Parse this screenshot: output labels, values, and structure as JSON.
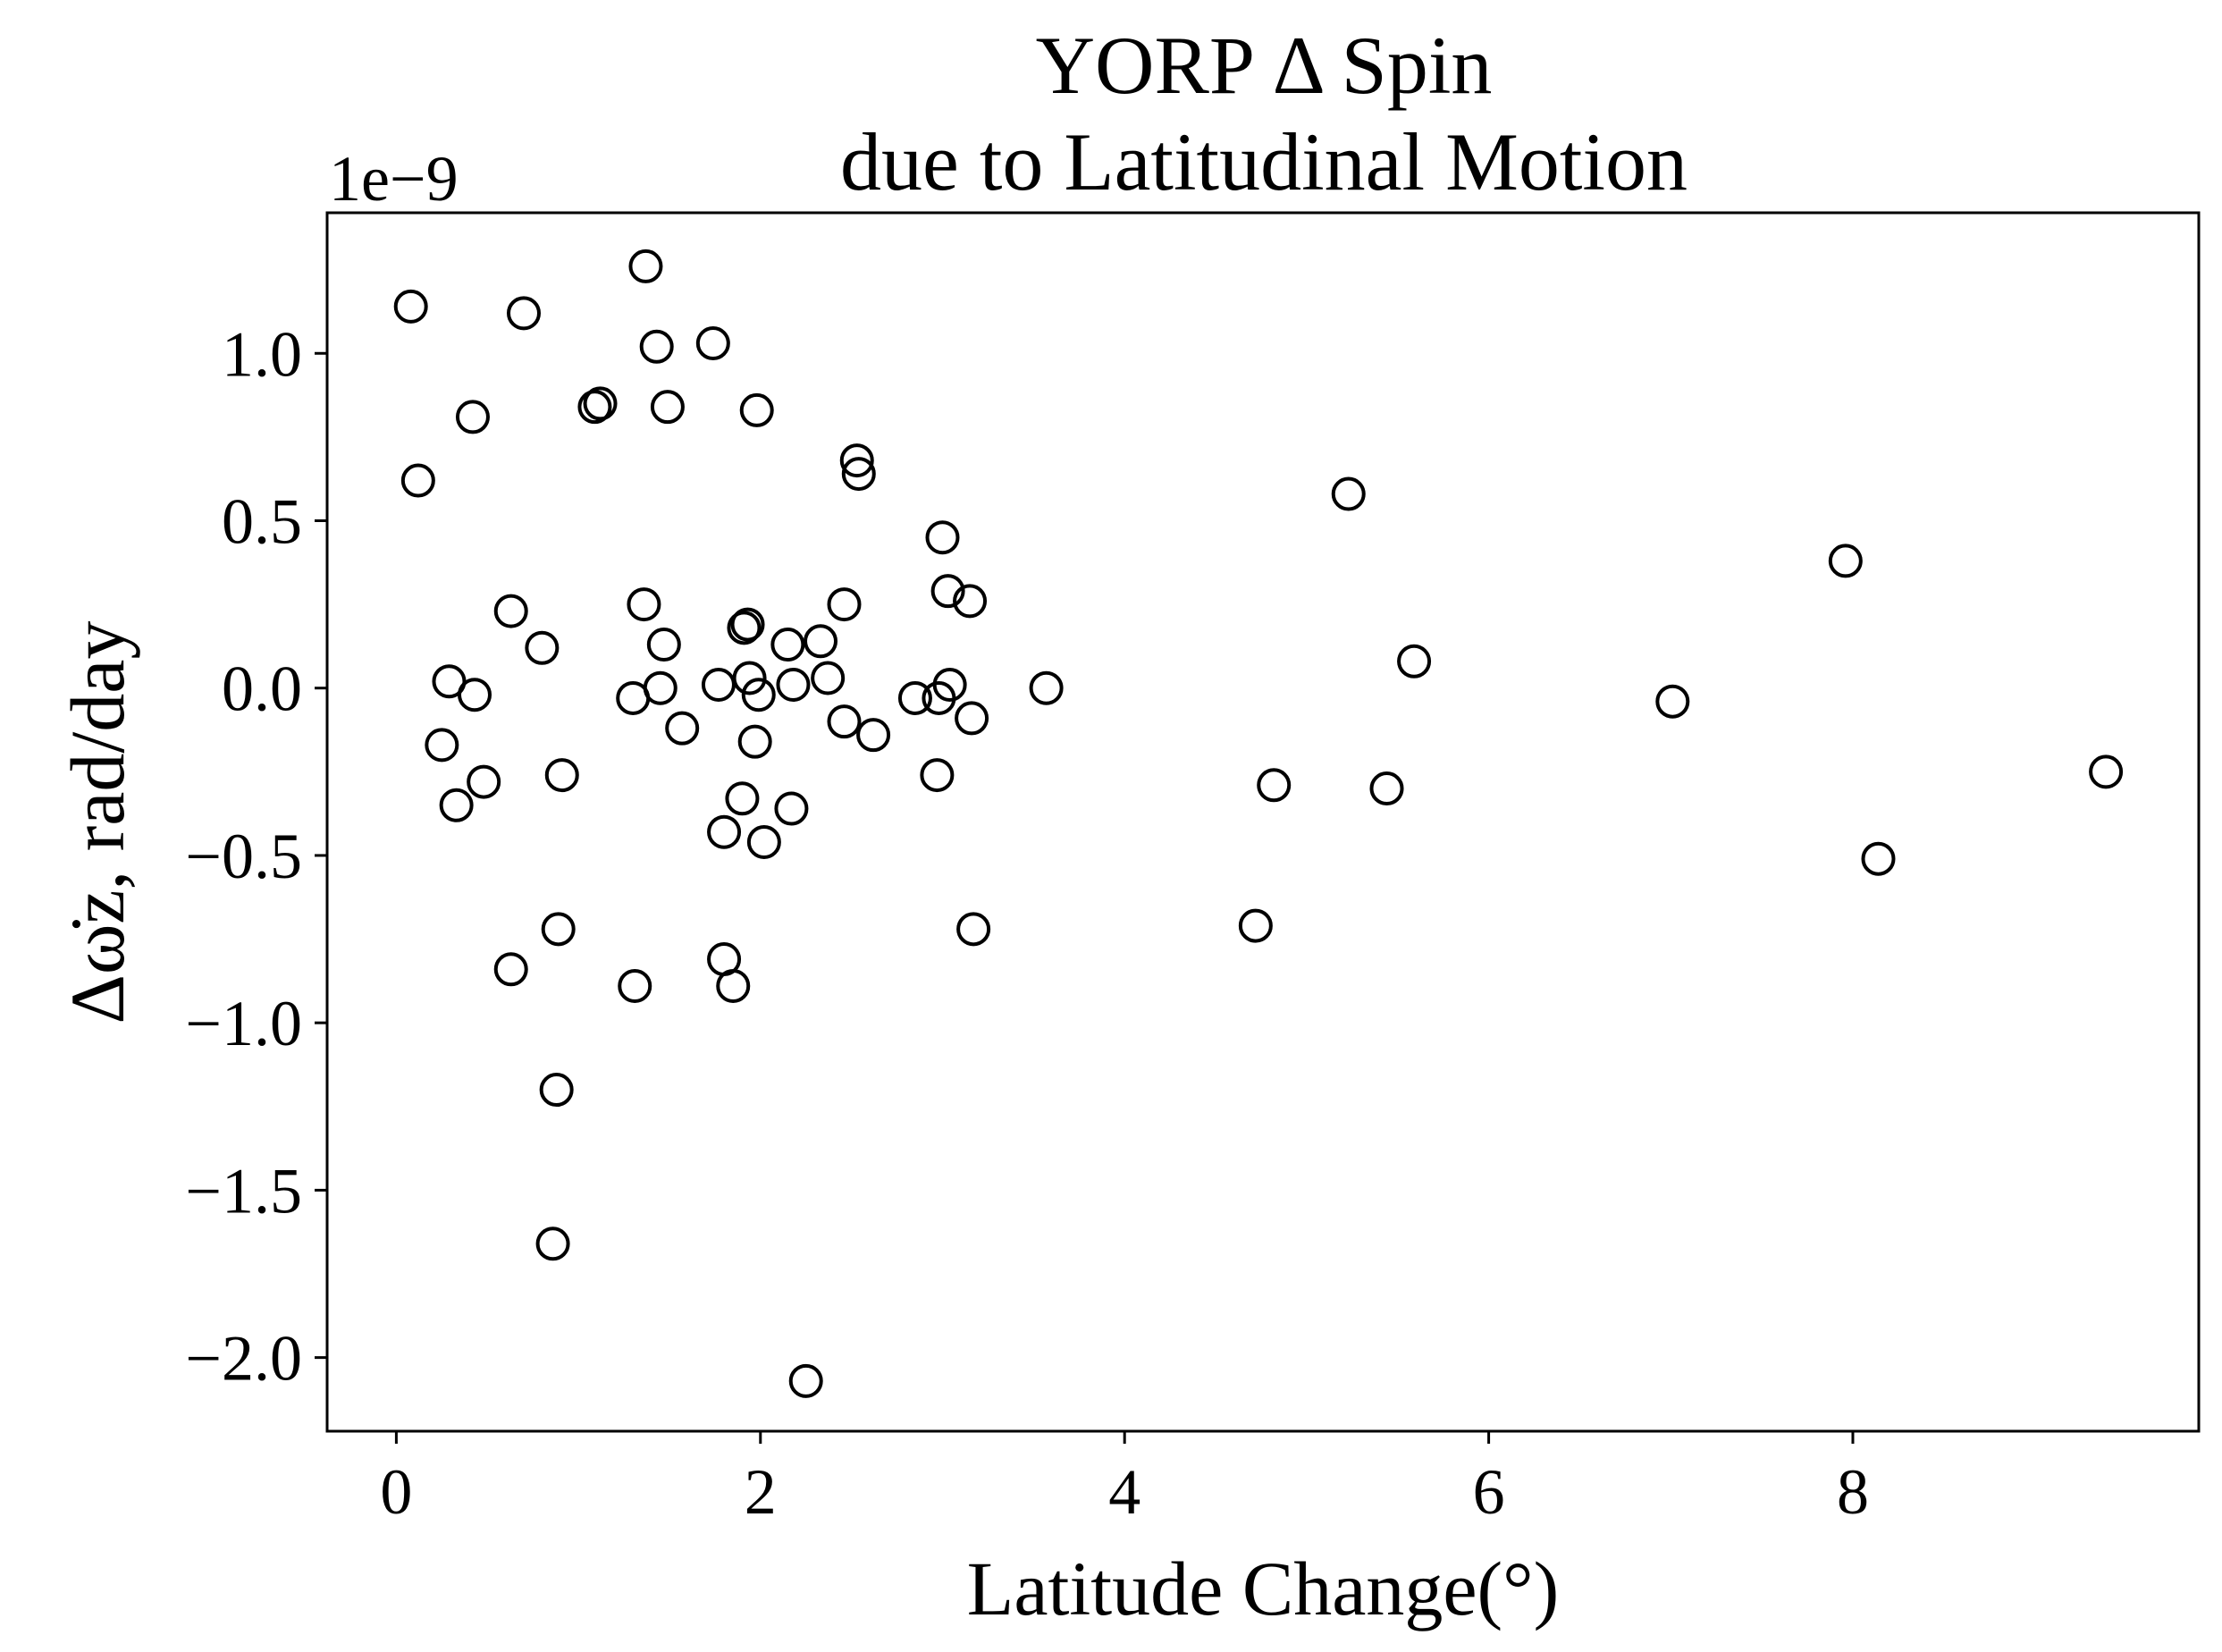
{
  "chart_data": {
    "type": "scatter",
    "title": "YORP Δ Spin",
    "subtitle": "due to Latitudinal Motion",
    "xlabel": "Latitude Change(°)",
    "ylabel": "Δω̇z, rad/day",
    "y_offset_label": "1e−9",
    "xlim": [
      -0.38,
      9.9
    ],
    "ylim": [
      -2.22,
      1.42
    ],
    "x_ticks": [
      0,
      2,
      4,
      6,
      8
    ],
    "x_tick_labels": [
      "0",
      "2",
      "4",
      "6",
      "8"
    ],
    "y_ticks": [
      1.0,
      0.5,
      0.0,
      -0.5,
      -1.0,
      -1.5,
      -2.0
    ],
    "y_tick_labels": [
      "1.0",
      "0.5",
      "0.0",
      "−0.5",
      "−1.0",
      "−1.5",
      "−2.0"
    ],
    "grid": false,
    "marker": "open-circle",
    "series": [
      {
        "x": [
          0.08,
          0.12,
          0.42,
          0.7,
          1.09,
          1.12,
          1.37,
          1.43,
          1.49,
          1.74,
          1.98,
          2.53,
          2.54,
          0.63,
          0.8,
          1.36,
          1.47,
          1.45,
          1.91,
          1.93,
          2.15,
          2.33,
          2.46,
          3.0,
          3.03,
          3.15,
          0.29,
          0.43,
          1.3,
          1.77,
          1.94,
          1.99,
          2.18,
          2.37,
          2.46,
          2.62,
          2.85,
          2.98,
          3.04,
          3.16,
          3.57,
          0.25,
          0.33,
          0.48,
          0.91,
          1.57,
          1.97,
          1.9,
          1.8,
          2.02,
          2.17,
          2.97,
          0.89,
          0.63,
          1.31,
          1.8,
          1.85,
          3.17,
          0.88,
          0.86,
          2.25,
          5.23,
          5.59,
          7.96,
          7.01,
          4.82,
          5.44,
          9.39,
          8.14,
          4.72
        ],
        "y": [
          1.14,
          0.62,
          0.81,
          1.12,
          0.84,
          0.85,
          1.26,
          1.02,
          0.84,
          1.03,
          0.83,
          0.68,
          0.64,
          0.23,
          0.12,
          0.25,
          0.13,
          0.0,
          0.18,
          0.19,
          0.13,
          0.14,
          0.25,
          0.45,
          0.29,
          0.26,
          0.02,
          -0.02,
          -0.03,
          0.01,
          0.03,
          -0.02,
          0.01,
          0.03,
          -0.1,
          -0.14,
          -0.03,
          -0.03,
          0.01,
          -0.09,
          0.0,
          -0.17,
          -0.35,
          -0.28,
          -0.26,
          -0.12,
          -0.16,
          -0.33,
          -0.43,
          -0.46,
          -0.36,
          -0.26,
          -0.72,
          -0.84,
          -0.89,
          -0.81,
          -0.89,
          -0.72,
          -1.2,
          -1.66,
          -2.07,
          0.58,
          0.08,
          0.38,
          -0.04,
          -0.29,
          -0.3,
          -0.25,
          -0.51,
          -0.71
        ]
      }
    ]
  }
}
